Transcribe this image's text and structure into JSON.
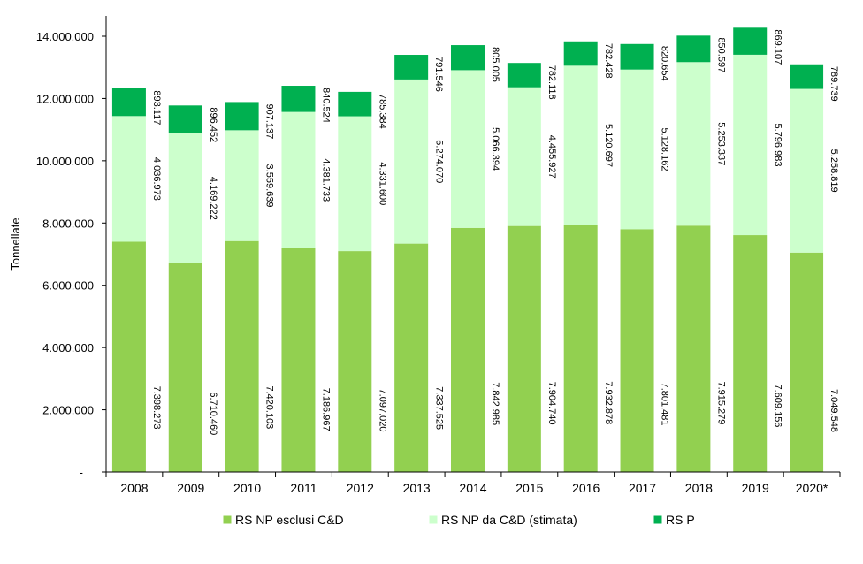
{
  "chart_data": {
    "type": "bar",
    "stacked": true,
    "ylabel": "Tonnellate",
    "ylim": [
      0,
      14000000
    ],
    "yticks": [
      {
        "value": 0,
        "label": "-"
      },
      {
        "value": 2000000,
        "label": "2.000.000"
      },
      {
        "value": 4000000,
        "label": "4.000.000"
      },
      {
        "value": 6000000,
        "label": "6.000.000"
      },
      {
        "value": 8000000,
        "label": "8.000.000"
      },
      {
        "value": 10000000,
        "label": "10.000.000"
      },
      {
        "value": 12000000,
        "label": "12.000.000"
      },
      {
        "value": 14000000,
        "label": "14.000.000"
      }
    ],
    "grid": false,
    "legend_position": "bottom",
    "categories": [
      "2008",
      "2009",
      "2010",
      "2011",
      "2012",
      "2013",
      "2014",
      "2015",
      "2016",
      "2017",
      "2018",
      "2019",
      "2020*"
    ],
    "series": [
      {
        "name": "RS NP esclusi C&D",
        "color": "#92d050",
        "values": [
          7398273,
          6710460,
          7420103,
          7186967,
          7097020,
          7337525,
          7842985,
          7904740,
          7932878,
          7801481,
          7915279,
          7609156,
          7049548
        ],
        "labels": [
          "7.398.273",
          "6.710.460",
          "7.420.103",
          "7.186.967",
          "7.097.020",
          "7.337.525",
          "7.842.985",
          "7.904.740",
          "7.932.878",
          "7.801.481",
          "7.915.279",
          "7.609.156",
          "7.049.548"
        ]
      },
      {
        "name": "RS NP da C&D (stimata)",
        "color": "#ccffcc",
        "values": [
          4036973,
          4169222,
          3559639,
          4381733,
          4331600,
          5274070,
          5066394,
          4455927,
          5120697,
          5128162,
          5253337,
          5796983,
          5258819
        ],
        "labels": [
          "4.036.973",
          "4.169.222",
          "3.559.639",
          "4.381.733",
          "4.331.600",
          "5.274.070",
          "5.066.394",
          "4.455.927",
          "5.120.697",
          "5.128.162",
          "5.253.337",
          "5.796.983",
          "5.258.819"
        ]
      },
      {
        "name": "RS P",
        "color": "#00b050",
        "values": [
          893117,
          896452,
          907137,
          840524,
          785384,
          791546,
          805005,
          782118,
          782428,
          820654,
          850597,
          869107,
          789739
        ],
        "labels": [
          "893.117",
          "896.452",
          "907.137",
          "840.524",
          "785.384",
          "791.546",
          "805.005",
          "782.118",
          "782.428",
          "820.654",
          "850.597",
          "869.107",
          "789.739"
        ]
      }
    ]
  }
}
